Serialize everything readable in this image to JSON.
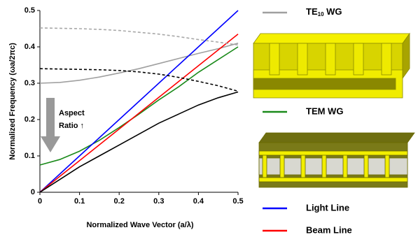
{
  "chart_data": {
    "type": "line",
    "xlabel": "Normalized Wave Vector (a/λ)",
    "ylabel": "Normalized Frequency (ωa/2πc)",
    "annotations": [
      "Aspect",
      "Ratio ↑"
    ],
    "x": [
      0,
      0.05,
      0.1,
      0.15,
      0.2,
      0.25,
      0.3,
      0.35,
      0.4,
      0.45,
      0.5
    ],
    "xlim": [
      0,
      0.5
    ],
    "ylim": [
      0,
      0.5
    ],
    "xticks": [
      0,
      0.1,
      0.2,
      0.3,
      0.4,
      0.5
    ],
    "yticks": [
      0,
      0.1,
      0.2,
      0.3,
      0.4,
      0.5
    ],
    "series": [
      {
        "name": "TE10 WG",
        "color": "#a0a0a0",
        "values": [
          0.3,
          0.302,
          0.308,
          0.317,
          0.328,
          0.34,
          0.354,
          0.368,
          0.382,
          0.395,
          0.41
        ]
      },
      {
        "name": "TEM WG",
        "color": "#1a8a1a",
        "values": [
          0.075,
          0.09,
          0.113,
          0.143,
          0.178,
          0.215,
          0.254,
          0.29,
          0.33,
          0.365,
          0.4
        ]
      },
      {
        "name": "Light Line",
        "color": "#0000ff",
        "values": [
          0,
          0.05,
          0.1,
          0.15,
          0.2,
          0.25,
          0.3,
          0.35,
          0.4,
          0.45,
          0.5
        ]
      },
      {
        "name": "Beam Line",
        "color": "#ff0000",
        "values": [
          0,
          0.0435,
          0.087,
          0.1305,
          0.174,
          0.2175,
          0.261,
          0.3045,
          0.348,
          0.3915,
          0.435
        ]
      },
      {
        "color": "#a8a8a8",
        "dashed": true,
        "values": [
          0.452,
          0.451,
          0.45,
          0.448,
          0.445,
          0.44,
          0.435,
          0.428,
          0.42,
          0.413,
          0.405
        ]
      },
      {
        "color": "#000000",
        "dashed": true,
        "values": [
          0.34,
          0.339,
          0.338,
          0.337,
          0.335,
          0.331,
          0.325,
          0.316,
          0.305,
          0.293,
          0.278
        ]
      },
      {
        "color": "#000000",
        "values": [
          0,
          0.035,
          0.07,
          0.1,
          0.13,
          0.16,
          0.19,
          0.215,
          0.24,
          0.26,
          0.276
        ]
      }
    ]
  }
}
